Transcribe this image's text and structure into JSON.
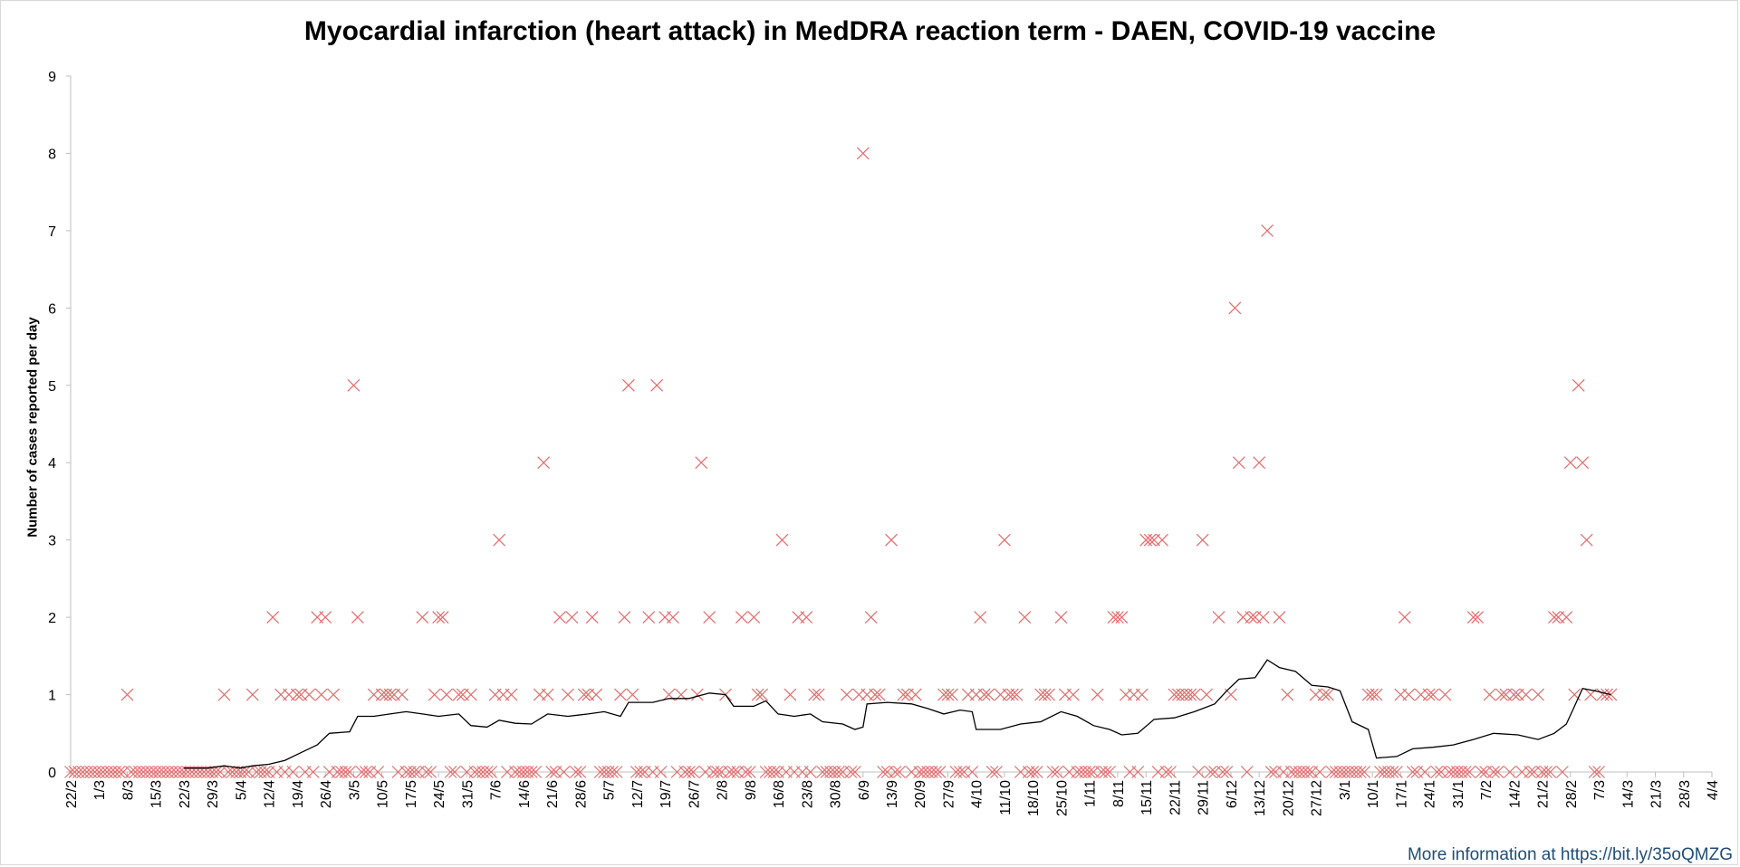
{
  "footer": {
    "text": "More information at https://bit.ly/35oQMZG"
  },
  "colors": {
    "marker": "#e46c6c",
    "average_line": "#000000",
    "axis": "#bfbfbf"
  },
  "chart_data": {
    "type": "scatter",
    "title": "Myocardial infarction (heart attack) in MedDRA reaction term - DAEN, COVID-19 vaccine",
    "xlabel": "",
    "ylabel": "Number of cases reported per day",
    "ylim": [
      0,
      9
    ],
    "yticks": [
      "0",
      "1",
      "2",
      "3",
      "4",
      "5",
      "6",
      "7",
      "8",
      "9"
    ],
    "x_range": [
      "2021-02-22",
      "2022-04-04"
    ],
    "x_tick_labels": [
      "22/2",
      "1/3",
      "8/3",
      "15/3",
      "22/3",
      "29/3",
      "5/4",
      "12/4",
      "19/4",
      "26/4",
      "3/5",
      "10/5",
      "17/5",
      "24/5",
      "31/5",
      "7/6",
      "14/6",
      "21/6",
      "28/6",
      "5/7",
      "12/7",
      "19/7",
      "26/7",
      "2/8",
      "9/8",
      "16/8",
      "23/8",
      "30/8",
      "6/9",
      "13/9",
      "20/9",
      "27/9",
      "4/10",
      "11/10",
      "18/10",
      "25/10",
      "1/11",
      "8/11",
      "15/11",
      "22/11",
      "29/11",
      "6/12",
      "13/12",
      "20/12",
      "27/12",
      "3/1",
      "10/1",
      "17/1",
      "24/1",
      "31/1",
      "7/2",
      "14/2",
      "21/2",
      "28/2",
      "7/3",
      "14/3",
      "21/3",
      "28/3",
      "4/4"
    ],
    "grid": false,
    "legend": "none",
    "series": [
      {
        "marker": "x",
        "points": [
          [
            "2021-03-08",
            1
          ],
          [
            "2021-04-01",
            1
          ],
          [
            "2021-04-08",
            1
          ],
          [
            "2021-04-13",
            2
          ],
          [
            "2021-04-15",
            1
          ],
          [
            "2021-04-17",
            1
          ],
          [
            "2021-04-19",
            1
          ],
          [
            "2021-04-20",
            1
          ],
          [
            "2021-04-22",
            1
          ],
          [
            "2021-04-24",
            2
          ],
          [
            "2021-04-25",
            1
          ],
          [
            "2021-04-26",
            2
          ],
          [
            "2021-04-28",
            1
          ],
          [
            "2021-05-03",
            5
          ],
          [
            "2021-05-04",
            2
          ],
          [
            "2021-05-08",
            1
          ],
          [
            "2021-05-10",
            1
          ],
          [
            "2021-05-11",
            1
          ],
          [
            "2021-05-12",
            1
          ],
          [
            "2021-05-13",
            1
          ],
          [
            "2021-05-15",
            1
          ],
          [
            "2021-05-20",
            2
          ],
          [
            "2021-05-23",
            1
          ],
          [
            "2021-05-24",
            2
          ],
          [
            "2021-05-25",
            2
          ],
          [
            "2021-05-26",
            1
          ],
          [
            "2021-05-29",
            1
          ],
          [
            "2021-05-30",
            1
          ],
          [
            "2021-06-01",
            1
          ],
          [
            "2021-06-07",
            1
          ],
          [
            "2021-06-08",
            3
          ],
          [
            "2021-06-09",
            1
          ],
          [
            "2021-06-11",
            1
          ],
          [
            "2021-06-18",
            1
          ],
          [
            "2021-06-19",
            4
          ],
          [
            "2021-06-20",
            1
          ],
          [
            "2021-06-23",
            2
          ],
          [
            "2021-06-25",
            1
          ],
          [
            "2021-06-26",
            2
          ],
          [
            "2021-06-29",
            1
          ],
          [
            "2021-06-30",
            1
          ],
          [
            "2021-07-01",
            2
          ],
          [
            "2021-07-02",
            1
          ],
          [
            "2021-07-08",
            1
          ],
          [
            "2021-07-09",
            2
          ],
          [
            "2021-07-10",
            5
          ],
          [
            "2021-07-11",
            1
          ],
          [
            "2021-07-15",
            2
          ],
          [
            "2021-07-17",
            5
          ],
          [
            "2021-07-19",
            2
          ],
          [
            "2021-07-20",
            1
          ],
          [
            "2021-07-21",
            2
          ],
          [
            "2021-07-23",
            1
          ],
          [
            "2021-07-27",
            1
          ],
          [
            "2021-07-28",
            4
          ],
          [
            "2021-07-30",
            2
          ],
          [
            "2021-08-03",
            1
          ],
          [
            "2021-08-07",
            2
          ],
          [
            "2021-08-10",
            2
          ],
          [
            "2021-08-11",
            1
          ],
          [
            "2021-08-12",
            1
          ],
          [
            "2021-08-17",
            3
          ],
          [
            "2021-08-19",
            1
          ],
          [
            "2021-08-21",
            2
          ],
          [
            "2021-08-23",
            2
          ],
          [
            "2021-08-25",
            1
          ],
          [
            "2021-08-26",
            1
          ],
          [
            "2021-09-02",
            1
          ],
          [
            "2021-09-05",
            1
          ],
          [
            "2021-09-06",
            8
          ],
          [
            "2021-09-07",
            1
          ],
          [
            "2021-09-08",
            2
          ],
          [
            "2021-09-09",
            1
          ],
          [
            "2021-09-10",
            1
          ],
          [
            "2021-09-13",
            3
          ],
          [
            "2021-09-16",
            1
          ],
          [
            "2021-09-17",
            1
          ],
          [
            "2021-09-19",
            1
          ],
          [
            "2021-09-26",
            1
          ],
          [
            "2021-09-27",
            1
          ],
          [
            "2021-09-28",
            1
          ],
          [
            "2021-10-02",
            1
          ],
          [
            "2021-10-04",
            1
          ],
          [
            "2021-10-05",
            2
          ],
          [
            "2021-10-06",
            1
          ],
          [
            "2021-10-07",
            1
          ],
          [
            "2021-10-10",
            1
          ],
          [
            "2021-10-11",
            3
          ],
          [
            "2021-10-12",
            1
          ],
          [
            "2021-10-13",
            1
          ],
          [
            "2021-10-14",
            1
          ],
          [
            "2021-10-16",
            2
          ],
          [
            "2021-10-20",
            1
          ],
          [
            "2021-10-21",
            1
          ],
          [
            "2021-10-22",
            1
          ],
          [
            "2021-10-25",
            2
          ],
          [
            "2021-10-26",
            1
          ],
          [
            "2021-10-28",
            1
          ],
          [
            "2021-11-03",
            1
          ],
          [
            "2021-11-07",
            2
          ],
          [
            "2021-11-08",
            2
          ],
          [
            "2021-11-09",
            2
          ],
          [
            "2021-11-10",
            1
          ],
          [
            "2021-11-12",
            1
          ],
          [
            "2021-11-14",
            1
          ],
          [
            "2021-11-15",
            3
          ],
          [
            "2021-11-16",
            3
          ],
          [
            "2021-11-17",
            3
          ],
          [
            "2021-11-19",
            3
          ],
          [
            "2021-11-22",
            1
          ],
          [
            "2021-11-23",
            1
          ],
          [
            "2021-11-24",
            1
          ],
          [
            "2021-11-25",
            1
          ],
          [
            "2021-11-26",
            1
          ],
          [
            "2021-11-27",
            1
          ],
          [
            "2021-11-29",
            3
          ],
          [
            "2021-11-30",
            1
          ],
          [
            "2021-12-03",
            2
          ],
          [
            "2021-12-06",
            1
          ],
          [
            "2021-12-07",
            6
          ],
          [
            "2021-12-08",
            4
          ],
          [
            "2021-12-09",
            2
          ],
          [
            "2021-12-11",
            2
          ],
          [
            "2021-12-12",
            2
          ],
          [
            "2021-12-13",
            4
          ],
          [
            "2021-12-14",
            2
          ],
          [
            "2021-12-15",
            7
          ],
          [
            "2021-12-18",
            2
          ],
          [
            "2021-12-20",
            1
          ],
          [
            "2021-12-27",
            1
          ],
          [
            "2021-12-29",
            1
          ],
          [
            "2021-12-30",
            1
          ],
          [
            "2022-01-09",
            1
          ],
          [
            "2022-01-10",
            1
          ],
          [
            "2022-01-11",
            1
          ],
          [
            "2022-01-17",
            1
          ],
          [
            "2022-01-18",
            2
          ],
          [
            "2022-01-19",
            1
          ],
          [
            "2022-01-22",
            1
          ],
          [
            "2022-01-24",
            1
          ],
          [
            "2022-01-25",
            1
          ],
          [
            "2022-01-28",
            1
          ],
          [
            "2022-02-04",
            2
          ],
          [
            "2022-02-05",
            2
          ],
          [
            "2022-02-08",
            1
          ],
          [
            "2022-02-11",
            1
          ],
          [
            "2022-02-12",
            1
          ],
          [
            "2022-02-14",
            1
          ],
          [
            "2022-02-15",
            1
          ],
          [
            "2022-02-17",
            1
          ],
          [
            "2022-02-20",
            1
          ],
          [
            "2022-02-24",
            2
          ],
          [
            "2022-02-25",
            2
          ],
          [
            "2022-02-27",
            2
          ],
          [
            "2022-02-28",
            4
          ],
          [
            "2022-03-01",
            1
          ],
          [
            "2022-03-02",
            5
          ],
          [
            "2022-03-03",
            4
          ],
          [
            "2022-03-04",
            3
          ],
          [
            "2022-03-05",
            1
          ],
          [
            "2022-03-08",
            1
          ],
          [
            "2022-03-09",
            1
          ],
          [
            "2022-03-10",
            1
          ]
        ],
        "zero_range": [
          "2021-02-22",
          "2022-03-10"
        ]
      },
      {
        "type": "line",
        "points": [
          [
            "2021-03-22",
            0.05
          ],
          [
            "2021-03-28",
            0.05
          ],
          [
            "2021-04-01",
            0.08
          ],
          [
            "2021-04-05",
            0.05
          ],
          [
            "2021-04-08",
            0.08
          ],
          [
            "2021-04-12",
            0.1
          ],
          [
            "2021-04-16",
            0.15
          ],
          [
            "2021-04-20",
            0.25
          ],
          [
            "2021-04-24",
            0.35
          ],
          [
            "2021-04-27",
            0.5
          ],
          [
            "2021-05-02",
            0.52
          ],
          [
            "2021-05-04",
            0.72
          ],
          [
            "2021-05-08",
            0.72
          ],
          [
            "2021-05-12",
            0.75
          ],
          [
            "2021-05-16",
            0.78
          ],
          [
            "2021-05-20",
            0.75
          ],
          [
            "2021-05-24",
            0.72
          ],
          [
            "2021-05-29",
            0.75
          ],
          [
            "2021-06-01",
            0.6
          ],
          [
            "2021-06-05",
            0.58
          ],
          [
            "2021-06-08",
            0.67
          ],
          [
            "2021-06-12",
            0.63
          ],
          [
            "2021-06-16",
            0.62
          ],
          [
            "2021-06-20",
            0.75
          ],
          [
            "2021-06-25",
            0.72
          ],
          [
            "2021-06-30",
            0.75
          ],
          [
            "2021-07-04",
            0.78
          ],
          [
            "2021-07-08",
            0.72
          ],
          [
            "2021-07-10",
            0.9
          ],
          [
            "2021-07-16",
            0.9
          ],
          [
            "2021-07-20",
            0.95
          ],
          [
            "2021-07-25",
            0.95
          ],
          [
            "2021-07-30",
            1.02
          ],
          [
            "2021-08-03",
            1.0
          ],
          [
            "2021-08-05",
            0.85
          ],
          [
            "2021-08-10",
            0.85
          ],
          [
            "2021-08-13",
            0.92
          ],
          [
            "2021-08-16",
            0.75
          ],
          [
            "2021-08-20",
            0.72
          ],
          [
            "2021-08-24",
            0.75
          ],
          [
            "2021-08-27",
            0.65
          ],
          [
            "2021-09-01",
            0.62
          ],
          [
            "2021-09-04",
            0.55
          ],
          [
            "2021-09-06",
            0.58
          ],
          [
            "2021-09-07",
            0.88
          ],
          [
            "2021-09-12",
            0.9
          ],
          [
            "2021-09-18",
            0.88
          ],
          [
            "2021-09-22",
            0.82
          ],
          [
            "2021-09-26",
            0.75
          ],
          [
            "2021-09-30",
            0.8
          ],
          [
            "2021-10-03",
            0.78
          ],
          [
            "2021-10-04",
            0.55
          ],
          [
            "2021-10-10",
            0.55
          ],
          [
            "2021-10-15",
            0.62
          ],
          [
            "2021-10-20",
            0.65
          ],
          [
            "2021-10-25",
            0.78
          ],
          [
            "2021-10-29",
            0.72
          ],
          [
            "2021-11-02",
            0.6
          ],
          [
            "2021-11-06",
            0.55
          ],
          [
            "2021-11-09",
            0.48
          ],
          [
            "2021-11-13",
            0.5
          ],
          [
            "2021-11-17",
            0.68
          ],
          [
            "2021-11-22",
            0.7
          ],
          [
            "2021-11-27",
            0.78
          ],
          [
            "2021-12-02",
            0.88
          ],
          [
            "2021-12-05",
            1.05
          ],
          [
            "2021-12-08",
            1.2
          ],
          [
            "2021-12-12",
            1.22
          ],
          [
            "2021-12-15",
            1.45
          ],
          [
            "2021-12-18",
            1.35
          ],
          [
            "2021-12-22",
            1.3
          ],
          [
            "2021-12-26",
            1.12
          ],
          [
            "2021-12-30",
            1.1
          ],
          [
            "2022-01-02",
            1.05
          ],
          [
            "2022-01-05",
            0.65
          ],
          [
            "2022-01-09",
            0.55
          ],
          [
            "2022-01-11",
            0.18
          ],
          [
            "2022-01-16",
            0.2
          ],
          [
            "2022-01-20",
            0.3
          ],
          [
            "2022-01-25",
            0.32
          ],
          [
            "2022-01-30",
            0.35
          ],
          [
            "2022-02-04",
            0.42
          ],
          [
            "2022-02-09",
            0.5
          ],
          [
            "2022-02-15",
            0.48
          ],
          [
            "2022-02-20",
            0.42
          ],
          [
            "2022-02-24",
            0.5
          ],
          [
            "2022-02-27",
            0.62
          ],
          [
            "2022-03-01",
            0.85
          ],
          [
            "2022-03-03",
            1.08
          ],
          [
            "2022-03-06",
            1.05
          ],
          [
            "2022-03-10",
            1.0
          ]
        ]
      }
    ]
  }
}
